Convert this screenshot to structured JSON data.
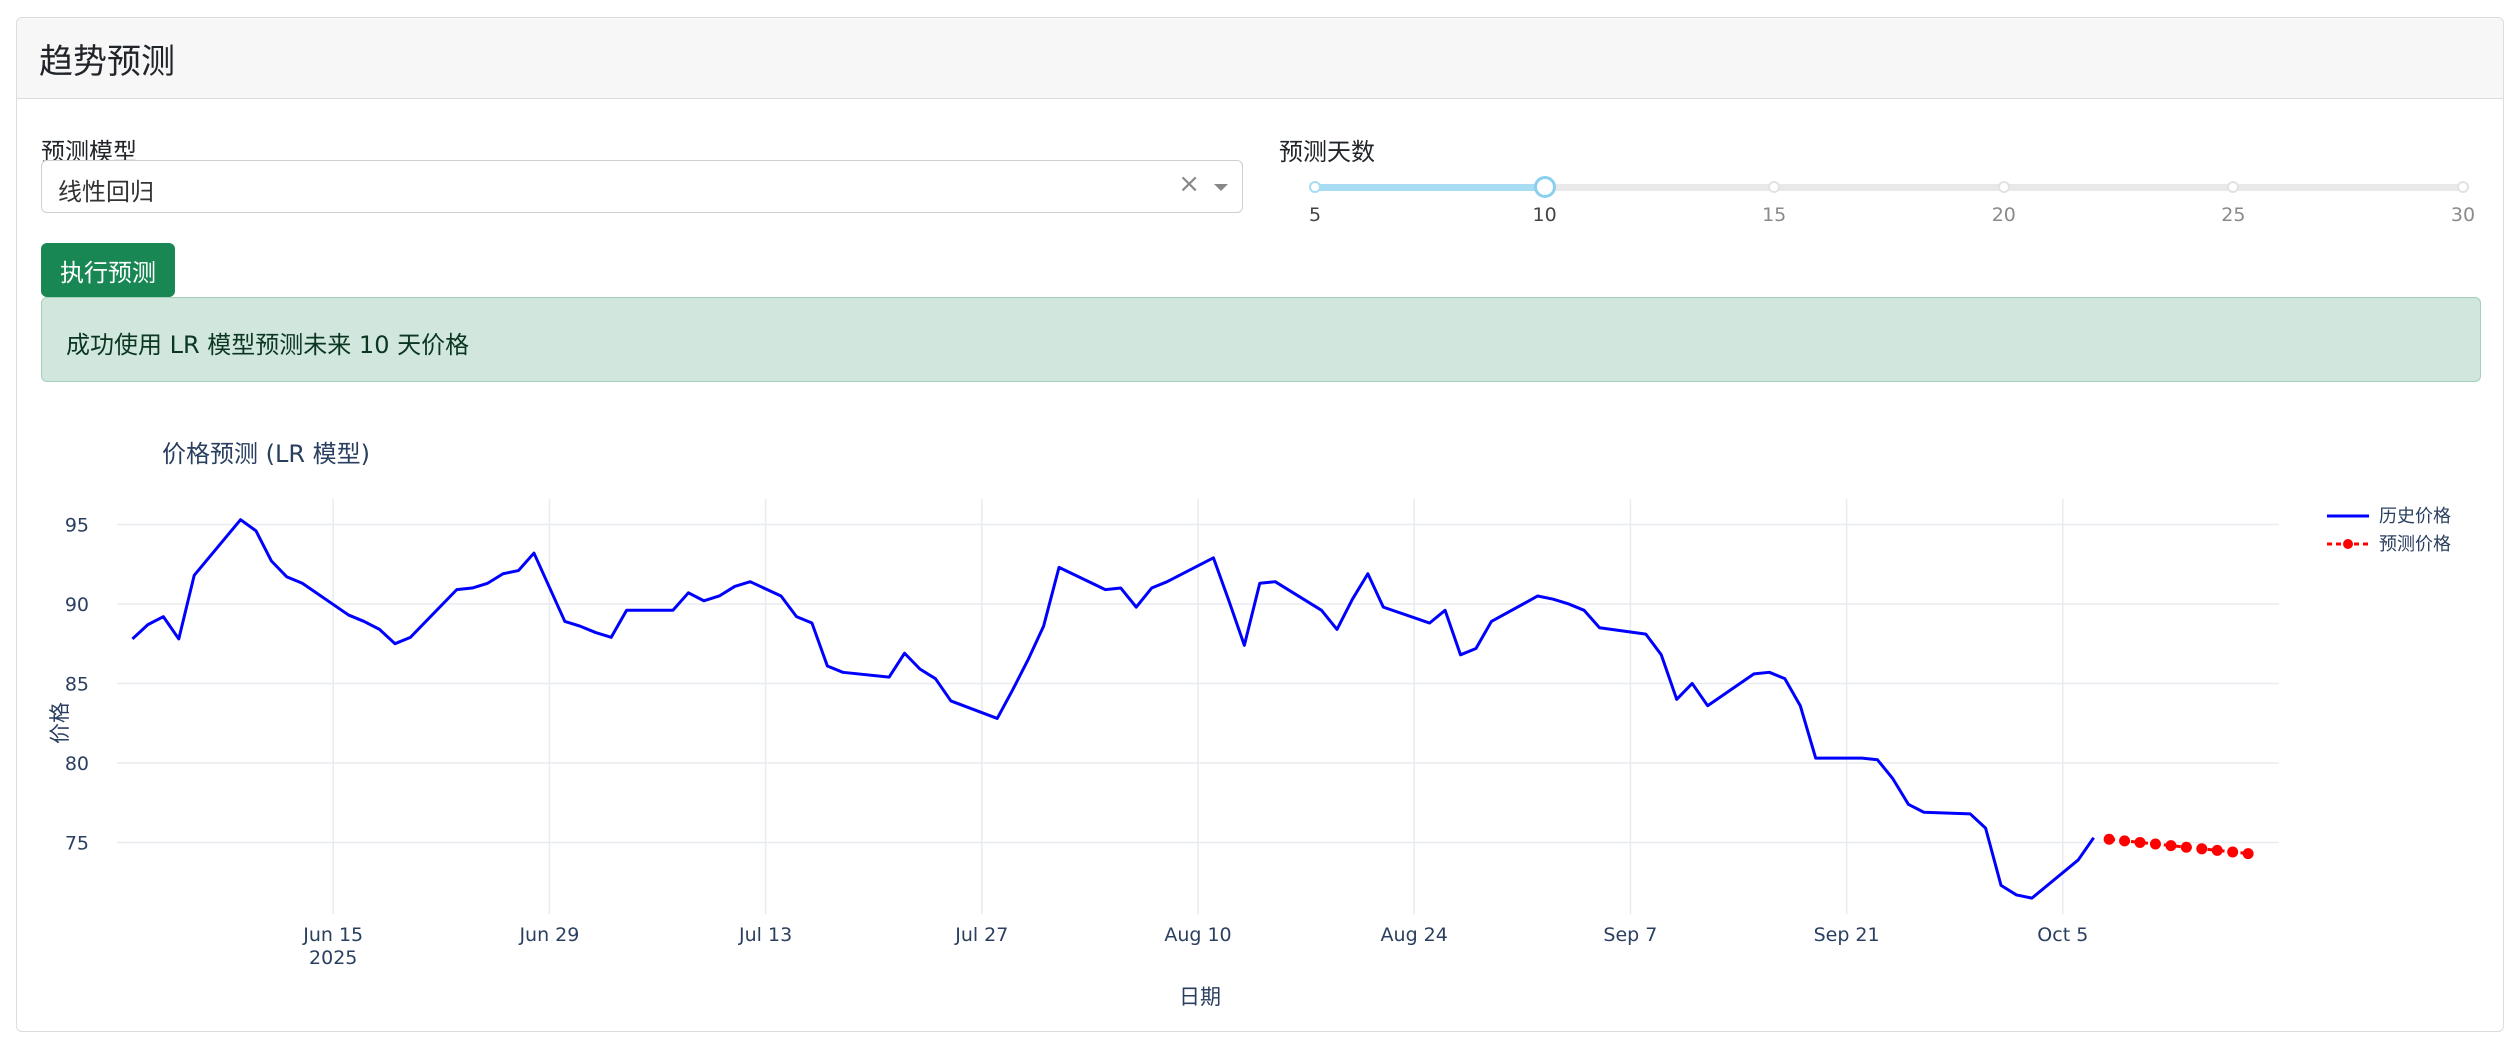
{
  "card": {
    "title": "趋势预测"
  },
  "model": {
    "label": "预测模型",
    "value": "线性回归",
    "clear_icon": "×"
  },
  "days": {
    "label": "预测天数",
    "min": 5,
    "max": 30,
    "value": 10,
    "marks": [
      "5",
      "10",
      "15",
      "20",
      "25",
      "30"
    ]
  },
  "run_button": {
    "label": "执行预测"
  },
  "alert": {
    "message": "成功使用 LR 模型预测未来 10 天价格"
  },
  "colors": {
    "history": "#0000ff",
    "forecast": "#ff0000",
    "button": "#198754",
    "slider": "#a8dcf3"
  },
  "chart_data": {
    "type": "line",
    "title": "价格预测 (LR 模型)",
    "xlabel": "日期",
    "ylabel": "价格",
    "xlim": [
      "2025-06-01",
      "2025-10-19"
    ],
    "ylim": [
      70.5,
      96.6
    ],
    "grid": true,
    "legend_position": "top-right",
    "x_ticks": [
      {
        "date": "2025-06-15",
        "label": "Jun 15",
        "sub": "2025"
      },
      {
        "date": "2025-06-29",
        "label": "Jun 29",
        "sub": ""
      },
      {
        "date": "2025-07-13",
        "label": "Jul 13",
        "sub": ""
      },
      {
        "date": "2025-07-27",
        "label": "Jul 27",
        "sub": ""
      },
      {
        "date": "2025-08-10",
        "label": "Aug 10",
        "sub": ""
      },
      {
        "date": "2025-08-24",
        "label": "Aug 24",
        "sub": ""
      },
      {
        "date": "2025-09-07",
        "label": "Sep 7",
        "sub": ""
      },
      {
        "date": "2025-09-21",
        "label": "Sep 21",
        "sub": ""
      },
      {
        "date": "2025-10-05",
        "label": "Oct 5",
        "sub": ""
      }
    ],
    "y_ticks": [
      75,
      80,
      85,
      90,
      95
    ],
    "series": [
      {
        "name": "历史价格",
        "style": "line",
        "points": [
          [
            "2025-06-02",
            87.8
          ],
          [
            "2025-06-03",
            88.7
          ],
          [
            "2025-06-04",
            89.2
          ],
          [
            "2025-06-05",
            87.8
          ],
          [
            "2025-06-06",
            91.8
          ],
          [
            "2025-06-09",
            95.3
          ],
          [
            "2025-06-10",
            94.6
          ],
          [
            "2025-06-11",
            92.7
          ],
          [
            "2025-06-12",
            91.7
          ],
          [
            "2025-06-13",
            91.3
          ],
          [
            "2025-06-16",
            89.3
          ],
          [
            "2025-06-17",
            88.9
          ],
          [
            "2025-06-18",
            88.4
          ],
          [
            "2025-06-19",
            87.5
          ],
          [
            "2025-06-20",
            87.9
          ],
          [
            "2025-06-23",
            90.9
          ],
          [
            "2025-06-24",
            91.0
          ],
          [
            "2025-06-25",
            91.3
          ],
          [
            "2025-06-26",
            91.9
          ],
          [
            "2025-06-27",
            92.1
          ],
          [
            "2025-06-28",
            93.2
          ],
          [
            "2025-06-30",
            88.9
          ],
          [
            "2025-07-01",
            88.6
          ],
          [
            "2025-07-02",
            88.2
          ],
          [
            "2025-07-03",
            87.9
          ],
          [
            "2025-07-04",
            89.6
          ],
          [
            "2025-07-07",
            89.6
          ],
          [
            "2025-07-08",
            90.7
          ],
          [
            "2025-07-09",
            90.2
          ],
          [
            "2025-07-10",
            90.5
          ],
          [
            "2025-07-11",
            91.1
          ],
          [
            "2025-07-12",
            91.4
          ],
          [
            "2025-07-14",
            90.5
          ],
          [
            "2025-07-15",
            89.2
          ],
          [
            "2025-07-16",
            88.8
          ],
          [
            "2025-07-17",
            86.1
          ],
          [
            "2025-07-18",
            85.7
          ],
          [
            "2025-07-21",
            85.4
          ],
          [
            "2025-07-22",
            86.9
          ],
          [
            "2025-07-23",
            85.9
          ],
          [
            "2025-07-24",
            85.3
          ],
          [
            "2025-07-25",
            83.9
          ],
          [
            "2025-07-28",
            82.8
          ],
          [
            "2025-07-29",
            84.6
          ],
          [
            "2025-07-30",
            86.5
          ],
          [
            "2025-07-31",
            88.6
          ],
          [
            "2025-08-01",
            92.3
          ],
          [
            "2025-08-04",
            90.9
          ],
          [
            "2025-08-05",
            91.0
          ],
          [
            "2025-08-06",
            89.8
          ],
          [
            "2025-08-07",
            91.0
          ],
          [
            "2025-08-08",
            91.4
          ],
          [
            "2025-08-11",
            92.9
          ],
          [
            "2025-08-12",
            90.2
          ],
          [
            "2025-08-13",
            87.4
          ],
          [
            "2025-08-14",
            91.3
          ],
          [
            "2025-08-15",
            91.4
          ],
          [
            "2025-08-18",
            89.6
          ],
          [
            "2025-08-19",
            88.4
          ],
          [
            "2025-08-20",
            90.3
          ],
          [
            "2025-08-21",
            91.9
          ],
          [
            "2025-08-22",
            89.8
          ],
          [
            "2025-08-25",
            88.8
          ],
          [
            "2025-08-26",
            89.6
          ],
          [
            "2025-08-27",
            86.8
          ],
          [
            "2025-08-28",
            87.2
          ],
          [
            "2025-08-29",
            88.9
          ],
          [
            "2025-09-01",
            90.5
          ],
          [
            "2025-09-02",
            90.3
          ],
          [
            "2025-09-03",
            90.0
          ],
          [
            "2025-09-04",
            89.6
          ],
          [
            "2025-09-05",
            88.5
          ],
          [
            "2025-09-08",
            88.1
          ],
          [
            "2025-09-09",
            86.8
          ],
          [
            "2025-09-10",
            84.0
          ],
          [
            "2025-09-11",
            85.0
          ],
          [
            "2025-09-12",
            83.6
          ],
          [
            "2025-09-15",
            85.6
          ],
          [
            "2025-09-16",
            85.7
          ],
          [
            "2025-09-17",
            85.3
          ],
          [
            "2025-09-18",
            83.6
          ],
          [
            "2025-09-19",
            80.3
          ],
          [
            "2025-09-22",
            80.3
          ],
          [
            "2025-09-23",
            80.2
          ],
          [
            "2025-09-24",
            79.0
          ],
          [
            "2025-09-25",
            77.4
          ],
          [
            "2025-09-26",
            76.9
          ],
          [
            "2025-09-29",
            76.8
          ],
          [
            "2025-09-30",
            75.9
          ],
          [
            "2025-10-01",
            72.3
          ],
          [
            "2025-10-02",
            71.7
          ],
          [
            "2025-10-03",
            71.5
          ],
          [
            "2025-10-06",
            73.9
          ],
          [
            "2025-10-07",
            75.3
          ]
        ]
      },
      {
        "name": "预测价格",
        "style": "dashed-markers",
        "points": [
          [
            "2025-10-08",
            75.2
          ],
          [
            "2025-10-09",
            75.1
          ],
          [
            "2025-10-10",
            75.0
          ],
          [
            "2025-10-11",
            74.9
          ],
          [
            "2025-10-12",
            74.8
          ],
          [
            "2025-10-13",
            74.7
          ],
          [
            "2025-10-14",
            74.6
          ],
          [
            "2025-10-15",
            74.5
          ],
          [
            "2025-10-16",
            74.4
          ],
          [
            "2025-10-17",
            74.3
          ]
        ]
      }
    ]
  }
}
